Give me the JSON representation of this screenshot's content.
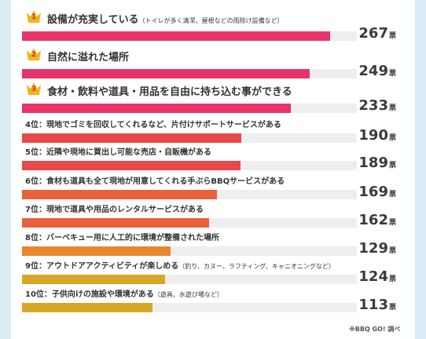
{
  "chart_data": {
    "type": "bar",
    "orientation": "horizontal",
    "unit": "票",
    "max_value": 290,
    "ranks": [
      {
        "rank_badge": "1",
        "label": "設備が充実している",
        "sub": "（トイレが多く清潔、屋根などの雨除け設備など）",
        "value": 267,
        "value_text": "267",
        "color": "#e8336a"
      },
      {
        "rank_badge": "2",
        "label": "自然に溢れた場所",
        "sub": "",
        "value": 249,
        "value_text": "249",
        "color": "#e8336a"
      },
      {
        "rank_badge": "3",
        "label": "食材・飲料や道具・用品を自由に持ち込む事ができる",
        "sub": "",
        "value": 233,
        "value_text": "233",
        "color": "#e8336a"
      },
      {
        "rank_label": "4位：",
        "label": "現地でゴミを回収してくれるなど、片付けサポートサービスがある",
        "sub": "",
        "value": 190,
        "value_text": "190",
        "color": "#e8484a"
      },
      {
        "rank_label": "5位：",
        "label": "近隣や現地に買出し可能な売店・自販機がある",
        "sub": "",
        "value": 189,
        "value_text": "189",
        "color": "#e8484a"
      },
      {
        "rank_label": "6位：",
        "label": "食材も道具も全て現地が用意してくれる手ぶらBBQサービスがある",
        "sub": "",
        "value": 169,
        "value_text": "169",
        "color": "#e8613c"
      },
      {
        "rank_label": "7位：",
        "label": "現地で道具や用品のレンタルサービスがある",
        "sub": "",
        "value": 162,
        "value_text": "162",
        "color": "#e8613c"
      },
      {
        "rank_label": "8位：",
        "label": "バーベキュー用に人工的に環境が整備された場所",
        "sub": "",
        "value": 129,
        "value_text": "129",
        "color": "#e8872c"
      },
      {
        "rank_label": "9位：",
        "label": "アウトドアアクティビティが楽しめる",
        "sub": "（釣り、カヌー、ラフティング、キャニオニングなど）",
        "value": 124,
        "value_text": "124",
        "color": "#d7a726"
      },
      {
        "rank_label": "10位：",
        "label": "子供向けの施設や環境がある",
        "sub": "（遊具、水遊び場など）",
        "value": 113,
        "value_text": "113",
        "color": "#d7a726"
      }
    ]
  },
  "footnote": "※BBQ GO! 調べ",
  "colors": {
    "background": "#dcecf7",
    "crown": "#f2b416",
    "track": "#eeeeee"
  }
}
